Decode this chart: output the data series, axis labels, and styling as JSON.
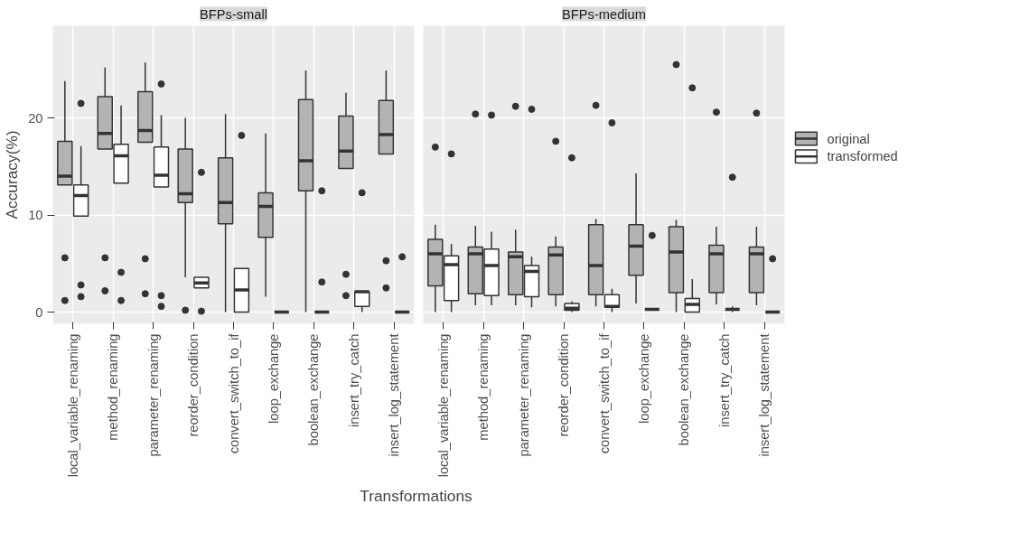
{
  "chart_data": [
    {
      "type": "box",
      "title": "BFPs-small",
      "xlabel": "Transformations",
      "ylabel": "Accuracy(%)",
      "categories": [
        "local_variable_renaming",
        "method_renaming",
        "parameter_renaming",
        "reorder_condition",
        "convert_switch_to_if",
        "loop_exchange",
        "boolean_exchange",
        "insert_try_catch",
        "insert_log_statement"
      ],
      "ylim": [
        -1.2,
        29.5
      ],
      "yticks": [
        0,
        10,
        20
      ],
      "grid": true,
      "series": [
        {
          "color": "#b3b3b3",
          "boxes": [
            {
              "low": 13.1,
              "q1": 13.1,
              "median": 14.0,
              "q3": 17.6,
              "high": 23.8,
              "outliers": [
                5.6,
                1.2
              ]
            },
            {
              "low": 16.8,
              "q1": 16.8,
              "median": 18.4,
              "q3": 22.2,
              "high": 25.2,
              "outliers": [
                5.6,
                2.2
              ]
            },
            {
              "low": 17.5,
              "q1": 17.5,
              "median": 18.7,
              "q3": 22.7,
              "high": 25.7,
              "outliers": [
                5.5,
                1.9
              ]
            },
            {
              "low": 3.6,
              "q1": 11.3,
              "median": 12.2,
              "q3": 16.8,
              "high": 20.0,
              "outliers": [
                0.2
              ]
            },
            {
              "low": 0,
              "q1": 9.1,
              "median": 11.3,
              "q3": 15.9,
              "high": 20.4
            },
            {
              "low": 1.6,
              "q1": 7.7,
              "median": 10.9,
              "q3": 12.3,
              "high": 18.4
            },
            {
              "low": 0,
              "q1": 12.5,
              "median": 15.6,
              "q3": 21.9,
              "high": 24.9
            },
            {
              "low": 14.8,
              "q1": 14.8,
              "median": 16.6,
              "q3": 20.2,
              "high": 22.6,
              "outliers": [
                3.9,
                1.7
              ]
            },
            {
              "low": 16.3,
              "q1": 16.3,
              "median": 18.3,
              "q3": 21.8,
              "high": 24.9,
              "outliers": [
                5.3,
                2.5
              ]
            }
          ]
        },
        {
          "color": "#ffffff",
          "boxes": [
            {
              "low": 9.9,
              "q1": 9.9,
              "median": 12.0,
              "q3": 13.1,
              "high": 17.1,
              "outliers": [
                21.5,
                2.8,
                1.6
              ]
            },
            {
              "low": 13.3,
              "q1": 13.3,
              "median": 16.1,
              "q3": 17.3,
              "high": 21.3,
              "outliers": [
                4.1,
                1.2
              ]
            },
            {
              "low": 12.9,
              "q1": 12.9,
              "median": 14.1,
              "q3": 17.0,
              "high": 20.3,
              "outliers": [
                23.5,
                1.7,
                0.6
              ]
            },
            {
              "low": 2.5,
              "q1": 2.5,
              "median": 3.0,
              "q3": 3.6,
              "high": 3.6,
              "outliers": [
                14.4,
                0.1
              ]
            },
            {
              "low": 0,
              "q1": 0,
              "median": 2.3,
              "q3": 4.5,
              "high": 4.5,
              "outliers": [
                18.2
              ]
            },
            {
              "low": 0,
              "q1": 0,
              "median": 0,
              "q3": 0,
              "high": 0
            },
            {
              "low": 0,
              "q1": 0,
              "median": 0,
              "q3": 0,
              "high": 0,
              "outliers": [
                12.5,
                3.1
              ]
            },
            {
              "low": 0,
              "q1": 0.6,
              "median": 2.1,
              "q3": 2.1,
              "high": 2.1,
              "outliers": [
                12.3
              ]
            },
            {
              "low": 0,
              "q1": 0,
              "median": 0,
              "q3": 0,
              "high": 0,
              "outliers": [
                5.7
              ]
            }
          ]
        }
      ]
    },
    {
      "type": "box",
      "title": "BFPs-medium",
      "categories": [
        "local_variable_renaming",
        "method_renaming",
        "parameter_renaming",
        "reorder_condition",
        "convert_switch_to_if",
        "loop_exchange",
        "boolean_exchange",
        "insert_try_catch",
        "insert_log_statement"
      ],
      "ylim": [
        -1.2,
        29.5
      ],
      "yticks": [
        0,
        10,
        20
      ],
      "grid": true,
      "legend": "right",
      "tick_labels": "x",
      "series": [
        {
          "name": "original",
          "color": "#b3b3b3",
          "boxes": [
            {
              "low": 0,
              "q1": 2.7,
              "median": 6.0,
              "q3": 7.5,
              "high": 9.0,
              "outliers": [
                17.0
              ]
            },
            {
              "low": 0.7,
              "q1": 1.9,
              "median": 6.0,
              "q3": 6.7,
              "high": 8.9,
              "outliers": [
                20.4
              ]
            },
            {
              "low": 0.7,
              "q1": 1.8,
              "median": 5.7,
              "q3": 6.2,
              "high": 8.5,
              "outliers": [
                21.2
              ]
            },
            {
              "low": 0.6,
              "q1": 1.8,
              "median": 5.9,
              "q3": 6.7,
              "high": 7.8,
              "outliers": [
                17.6
              ]
            },
            {
              "low": 0.6,
              "q1": 1.8,
              "median": 4.8,
              "q3": 9.0,
              "high": 9.6,
              "outliers": [
                21.3
              ]
            },
            {
              "low": 0.9,
              "q1": 3.8,
              "median": 6.8,
              "q3": 9.0,
              "high": 14.3
            },
            {
              "low": 0,
              "q1": 2.0,
              "median": 6.2,
              "q3": 8.8,
              "high": 9.5,
              "outliers": [
                25.5
              ]
            },
            {
              "low": 0.8,
              "q1": 2.0,
              "median": 6.0,
              "q3": 6.9,
              "high": 8.8,
              "outliers": [
                20.6
              ]
            },
            {
              "low": 0.7,
              "q1": 2.0,
              "median": 6.0,
              "q3": 6.7,
              "high": 8.8,
              "outliers": [
                20.5
              ]
            }
          ]
        },
        {
          "name": "transformed",
          "color": "#ffffff",
          "boxes": [
            {
              "low": 0,
              "q1": 1.2,
              "median": 4.9,
              "q3": 5.8,
              "high": 7.0,
              "outliers": [
                16.3
              ]
            },
            {
              "low": 0.7,
              "q1": 1.7,
              "median": 4.8,
              "q3": 6.5,
              "high": 8.3,
              "outliers": [
                20.3
              ]
            },
            {
              "low": 0.5,
              "q1": 1.6,
              "median": 4.2,
              "q3": 4.8,
              "high": 5.7,
              "outliers": [
                20.9
              ]
            },
            {
              "low": 0,
              "q1": 0.2,
              "median": 0.4,
              "q3": 0.9,
              "high": 1.1,
              "outliers": [
                15.9
              ]
            },
            {
              "low": 0,
              "q1": 0.5,
              "median": 0.6,
              "q3": 1.8,
              "high": 2.4,
              "outliers": [
                19.5
              ]
            },
            {
              "low": 0.3,
              "q1": 0.3,
              "median": 0.3,
              "q3": 0.3,
              "high": 0.3,
              "outliers": [
                7.9
              ]
            },
            {
              "low": 0,
              "q1": 0,
              "median": 0.8,
              "q3": 1.4,
              "high": 3.4,
              "outliers": [
                23.1
              ]
            },
            {
              "low": 0,
              "q1": 0.3,
              "median": 0.3,
              "q3": 0.3,
              "high": 0.6,
              "outliers": [
                13.9
              ]
            },
            {
              "low": 0,
              "q1": 0,
              "median": 0,
              "q3": 0,
              "high": 0,
              "outliers": [
                5.5
              ]
            }
          ]
        }
      ]
    }
  ]
}
